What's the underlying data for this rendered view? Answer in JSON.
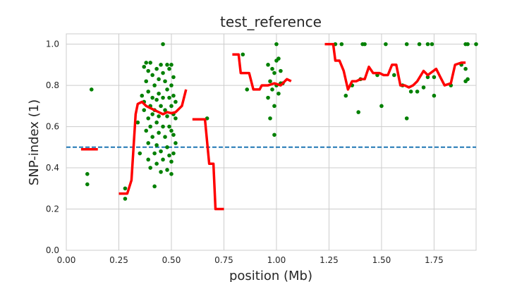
{
  "chart_data": {
    "type": "scatter",
    "title": "test_reference",
    "xlabel": "position (Mb)",
    "ylabel": "SNP-index (1)",
    "xlim": [
      0.0,
      1.95
    ],
    "ylim": [
      0.0,
      1.05
    ],
    "xticks": [
      "0.00",
      "0.25",
      "0.50",
      "0.75",
      "1.00",
      "1.25",
      "1.50",
      "1.75"
    ],
    "xtick_values": [
      0.0,
      0.25,
      0.5,
      0.75,
      1.0,
      1.25,
      1.5,
      1.75
    ],
    "yticks": [
      "0.0",
      "0.2",
      "0.4",
      "0.6",
      "0.8",
      "1.0"
    ],
    "ytick_values": [
      0.0,
      0.2,
      0.4,
      0.6,
      0.8,
      1.0
    ],
    "grid": true,
    "colors": {
      "points": "#008000",
      "line": "#ff0000",
      "threshold": "#1f77b4"
    },
    "threshold": 0.5,
    "points": [
      [
        0.1,
        0.37
      ],
      [
        0.1,
        0.32
      ],
      [
        0.12,
        0.78
      ],
      [
        0.28,
        0.3
      ],
      [
        0.28,
        0.25
      ],
      [
        0.34,
        0.62
      ],
      [
        0.35,
        0.47
      ],
      [
        0.36,
        0.75
      ],
      [
        0.37,
        0.68
      ],
      [
        0.37,
        0.72
      ],
      [
        0.37,
        0.89
      ],
      [
        0.38,
        0.91
      ],
      [
        0.38,
        0.58
      ],
      [
        0.38,
        0.82
      ],
      [
        0.39,
        0.87
      ],
      [
        0.39,
        0.77
      ],
      [
        0.39,
        0.64
      ],
      [
        0.39,
        0.52
      ],
      [
        0.39,
        0.44
      ],
      [
        0.4,
        0.91
      ],
      [
        0.4,
        0.7
      ],
      [
        0.4,
        0.6
      ],
      [
        0.4,
        0.4
      ],
      [
        0.41,
        0.74
      ],
      [
        0.41,
        0.66
      ],
      [
        0.41,
        0.55
      ],
      [
        0.41,
        0.85
      ],
      [
        0.42,
        0.8
      ],
      [
        0.42,
        0.68
      ],
      [
        0.42,
        0.47
      ],
      [
        0.42,
        0.31
      ],
      [
        0.43,
        0.88
      ],
      [
        0.43,
        0.73
      ],
      [
        0.43,
        0.62
      ],
      [
        0.43,
        0.51
      ],
      [
        0.43,
        0.42
      ],
      [
        0.44,
        0.83
      ],
      [
        0.44,
        0.76
      ],
      [
        0.44,
        0.65
      ],
      [
        0.44,
        0.57
      ],
      [
        0.45,
        0.9
      ],
      [
        0.45,
        0.7
      ],
      [
        0.45,
        0.48
      ],
      [
        0.45,
        0.38
      ],
      [
        0.46,
        1.0
      ],
      [
        0.46,
        0.86
      ],
      [
        0.46,
        0.74
      ],
      [
        0.46,
        0.6
      ],
      [
        0.46,
        0.44
      ],
      [
        0.47,
        0.82
      ],
      [
        0.47,
        0.68
      ],
      [
        0.47,
        0.55
      ],
      [
        0.48,
        0.9
      ],
      [
        0.48,
        0.78
      ],
      [
        0.48,
        0.65
      ],
      [
        0.48,
        0.5
      ],
      [
        0.48,
        0.39
      ],
      [
        0.49,
        0.88
      ],
      [
        0.49,
        0.74
      ],
      [
        0.49,
        0.6
      ],
      [
        0.49,
        0.46
      ],
      [
        0.5,
        0.9
      ],
      [
        0.5,
        0.8
      ],
      [
        0.5,
        0.7
      ],
      [
        0.5,
        0.58
      ],
      [
        0.5,
        0.43
      ],
      [
        0.5,
        0.37
      ],
      [
        0.51,
        0.84
      ],
      [
        0.51,
        0.75
      ],
      [
        0.51,
        0.66
      ],
      [
        0.51,
        0.56
      ],
      [
        0.51,
        0.47
      ],
      [
        0.52,
        0.72
      ],
      [
        0.52,
        0.64
      ],
      [
        0.52,
        0.52
      ],
      [
        0.67,
        0.64
      ],
      [
        0.84,
        0.95
      ],
      [
        0.86,
        0.78
      ],
      [
        0.96,
        0.9
      ],
      [
        0.96,
        0.74
      ],
      [
        0.97,
        0.82
      ],
      [
        0.97,
        0.64
      ],
      [
        0.98,
        0.88
      ],
      [
        0.98,
        0.78
      ],
      [
        0.99,
        0.86
      ],
      [
        0.99,
        0.7
      ],
      [
        0.99,
        0.56
      ],
      [
        1.0,
        1.0
      ],
      [
        1.0,
        0.92
      ],
      [
        1.0,
        0.8
      ],
      [
        1.01,
        0.93
      ],
      [
        1.01,
        0.76
      ],
      [
        1.02,
        0.81
      ],
      [
        1.02,
        0.87
      ],
      [
        1.03,
        0.81
      ],
      [
        1.28,
        1.0
      ],
      [
        1.31,
        1.0
      ],
      [
        1.33,
        0.75
      ],
      [
        1.36,
        0.8
      ],
      [
        1.39,
        0.67
      ],
      [
        1.4,
        0.83
      ],
      [
        1.41,
        1.0
      ],
      [
        1.42,
        1.0
      ],
      [
        1.48,
        0.85
      ],
      [
        1.5,
        0.7
      ],
      [
        1.52,
        1.0
      ],
      [
        1.56,
        0.85
      ],
      [
        1.6,
        0.8
      ],
      [
        1.62,
        1.0
      ],
      [
        1.62,
        0.64
      ],
      [
        1.64,
        0.77
      ],
      [
        1.67,
        0.77
      ],
      [
        1.68,
        1.0
      ],
      [
        1.7,
        0.79
      ],
      [
        1.72,
        1.0
      ],
      [
        1.72,
        0.84
      ],
      [
        1.74,
        1.0
      ],
      [
        1.75,
        0.84
      ],
      [
        1.75,
        0.75
      ],
      [
        1.83,
        0.8
      ],
      [
        1.88,
        0.9
      ],
      [
        1.9,
        1.0
      ],
      [
        1.9,
        0.88
      ],
      [
        1.9,
        0.82
      ],
      [
        1.91,
        1.0
      ],
      [
        1.91,
        0.83
      ],
      [
        1.95,
        1.0
      ]
    ],
    "series": [
      {
        "values": [
          [
            0.07,
            0.49
          ],
          [
            0.15,
            0.49
          ]
        ]
      },
      {
        "values": [
          [
            0.25,
            0.275
          ],
          [
            0.29,
            0.275
          ],
          [
            0.31,
            0.34
          ],
          [
            0.33,
            0.66
          ],
          [
            0.34,
            0.71
          ],
          [
            0.36,
            0.72
          ],
          [
            0.38,
            0.7
          ],
          [
            0.4,
            0.69
          ],
          [
            0.42,
            0.68
          ],
          [
            0.44,
            0.67
          ],
          [
            0.46,
            0.66
          ],
          [
            0.48,
            0.67
          ],
          [
            0.5,
            0.665
          ],
          [
            0.52,
            0.67
          ],
          [
            0.55,
            0.7
          ],
          [
            0.57,
            0.78
          ]
        ]
      },
      {
        "values": [
          [
            0.6,
            0.635
          ],
          [
            0.66,
            0.635
          ],
          [
            0.68,
            0.42
          ],
          [
            0.7,
            0.42
          ],
          [
            0.71,
            0.2
          ],
          [
            0.75,
            0.2
          ]
        ]
      },
      {
        "values": [
          [
            0.79,
            0.95
          ],
          [
            0.82,
            0.95
          ],
          [
            0.83,
            0.86
          ],
          [
            0.87,
            0.86
          ],
          [
            0.89,
            0.78
          ],
          [
            0.92,
            0.78
          ],
          [
            0.93,
            0.8
          ],
          [
            0.96,
            0.8
          ],
          [
            0.99,
            0.81
          ],
          [
            1.02,
            0.8
          ],
          [
            1.05,
            0.83
          ],
          [
            1.07,
            0.82
          ]
        ]
      },
      {
        "values": [
          [
            1.23,
            1.0
          ],
          [
            1.27,
            1.0
          ],
          [
            1.28,
            0.92
          ],
          [
            1.3,
            0.92
          ],
          [
            1.32,
            0.87
          ],
          [
            1.34,
            0.78
          ],
          [
            1.36,
            0.82
          ],
          [
            1.38,
            0.82
          ],
          [
            1.4,
            0.83
          ],
          [
            1.42,
            0.83
          ],
          [
            1.44,
            0.89
          ],
          [
            1.46,
            0.86
          ],
          [
            1.49,
            0.86
          ],
          [
            1.51,
            0.85
          ],
          [
            1.53,
            0.85
          ],
          [
            1.55,
            0.9
          ],
          [
            1.57,
            0.9
          ],
          [
            1.59,
            0.8
          ],
          [
            1.61,
            0.8
          ],
          [
            1.63,
            0.79
          ],
          [
            1.65,
            0.8
          ],
          [
            1.67,
            0.82
          ],
          [
            1.7,
            0.87
          ],
          [
            1.72,
            0.85
          ],
          [
            1.76,
            0.88
          ],
          [
            1.78,
            0.84
          ],
          [
            1.8,
            0.8
          ],
          [
            1.83,
            0.81
          ],
          [
            1.85,
            0.9
          ],
          [
            1.88,
            0.91
          ],
          [
            1.9,
            0.91
          ]
        ]
      }
    ]
  }
}
